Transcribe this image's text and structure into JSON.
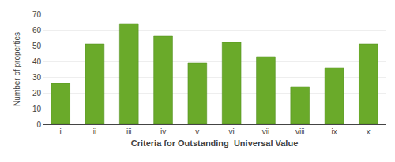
{
  "chart_data": {
    "type": "bar",
    "categories": [
      "i",
      "ii",
      "iii",
      "iv",
      "v",
      "vi",
      "vii",
      "viii",
      "ix",
      "x"
    ],
    "values": [
      26,
      51,
      64,
      56,
      39,
      52,
      43,
      24,
      36,
      51
    ],
    "color": "#6aaa2a",
    "xlabel": "Criteria for Outstanding  Universal Value",
    "ylabel": "Number of properties",
    "ylim": [
      0,
      70
    ],
    "yticks": [
      0,
      10,
      20,
      30,
      40,
      50,
      60,
      70
    ],
    "grid": true
  }
}
